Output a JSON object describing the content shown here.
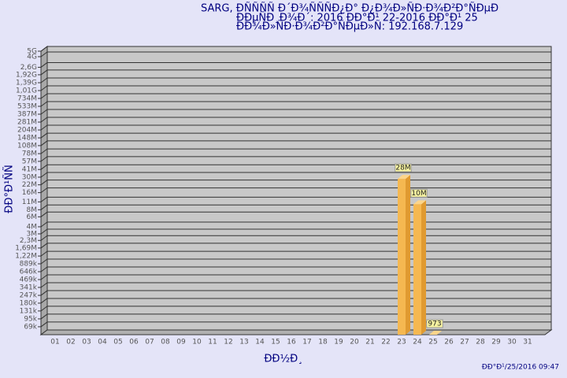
{
  "chart_data": {
    "type": "bar",
    "title": [
      "SARG,  ÐÑÑÑÑ Ð´Ð¾ÑÑÑÐ¿Ð° Ð¿Ð¾Ð»ÑÐ·Ð¾Ð²Ð°ÑÐµÐ",
      "ÐÐµÑÐ¸Ð¾Ð´: 2016 ÐÐ°Ð¹ 22-2016 ÐÐ°Ð¹ 25",
      "ÐÐ¾Ð»ÑÐ·Ð¾Ð²Ð°ÑÐµÐ»Ñ: 192.168.7.129"
    ],
    "y_label": "ÐÐ°Ð¹ÑÑ",
    "x_label": "ÐÐ½Ð¸",
    "footer": "ÐÐ°Ð¹/25/2016 09:47",
    "categories": [
      "01",
      "02",
      "03",
      "04",
      "05",
      "06",
      "07",
      "08",
      "09",
      "10",
      "11",
      "12",
      "13",
      "14",
      "15",
      "16",
      "17",
      "18",
      "19",
      "20",
      "21",
      "22",
      "23",
      "24",
      "25",
      "26",
      "27",
      "28",
      "29",
      "30",
      "31"
    ],
    "values": [
      null,
      null,
      null,
      null,
      null,
      null,
      null,
      null,
      null,
      null,
      null,
      null,
      null,
      null,
      null,
      null,
      null,
      null,
      null,
      null,
      null,
      null,
      28000000,
      10000000,
      973,
      null,
      null,
      null,
      null,
      null,
      null
    ],
    "value_labels": [
      null,
      null,
      null,
      null,
      null,
      null,
      null,
      null,
      null,
      null,
      null,
      null,
      null,
      null,
      null,
      null,
      null,
      null,
      null,
      null,
      null,
      null,
      "28M",
      "10M",
      "973",
      null,
      null,
      null,
      null,
      null,
      null
    ],
    "color": "#f5b851",
    "yscale": "log",
    "ylim": [
      50000,
      5000000000
    ],
    "yticks": [
      {
        "value": 69000,
        "label": "69k"
      },
      {
        "value": 95000,
        "label": "95k"
      },
      {
        "value": 131000,
        "label": "131k"
      },
      {
        "value": 180000,
        "label": "180k"
      },
      {
        "value": 247000,
        "label": "247k"
      },
      {
        "value": 341000,
        "label": "341k"
      },
      {
        "value": 469000,
        "label": "469k"
      },
      {
        "value": 646000,
        "label": "646k"
      },
      {
        "value": 889000,
        "label": "889k"
      },
      {
        "value": 1220000,
        "label": "1,22M"
      },
      {
        "value": 1690000,
        "label": "1,69M"
      },
      {
        "value": 2300000,
        "label": "2,3M"
      },
      {
        "value": 3000000,
        "label": "3M"
      },
      {
        "value": 4000000,
        "label": "4M"
      },
      {
        "value": 6000000,
        "label": "6M"
      },
      {
        "value": 8000000,
        "label": "8M"
      },
      {
        "value": 11000000,
        "label": "11M"
      },
      {
        "value": 16000000,
        "label": "16M"
      },
      {
        "value": 22000000,
        "label": "22M"
      },
      {
        "value": 30000000,
        "label": "30M"
      },
      {
        "value": 41000000,
        "label": "41M"
      },
      {
        "value": 57000000,
        "label": "57M"
      },
      {
        "value": 78000000,
        "label": "78M"
      },
      {
        "value": 108000000,
        "label": "108M"
      },
      {
        "value": 148000000,
        "label": "148M"
      },
      {
        "value": 204000000,
        "label": "204M"
      },
      {
        "value": 281000000,
        "label": "281M"
      },
      {
        "value": 387000000,
        "label": "387M"
      },
      {
        "value": 533000000,
        "label": "533M"
      },
      {
        "value": 734000000,
        "label": "734M"
      },
      {
        "value": 1010000000,
        "label": "1,01G"
      },
      {
        "value": 1390000000,
        "label": "1,39G"
      },
      {
        "value": 1920000000,
        "label": "1,92G"
      },
      {
        "value": 2600000000,
        "label": "2,6G"
      },
      {
        "value": 4000000000,
        "label": "4G"
      },
      {
        "value": 5000000000,
        "label": "5G"
      }
    ],
    "grid": true
  }
}
